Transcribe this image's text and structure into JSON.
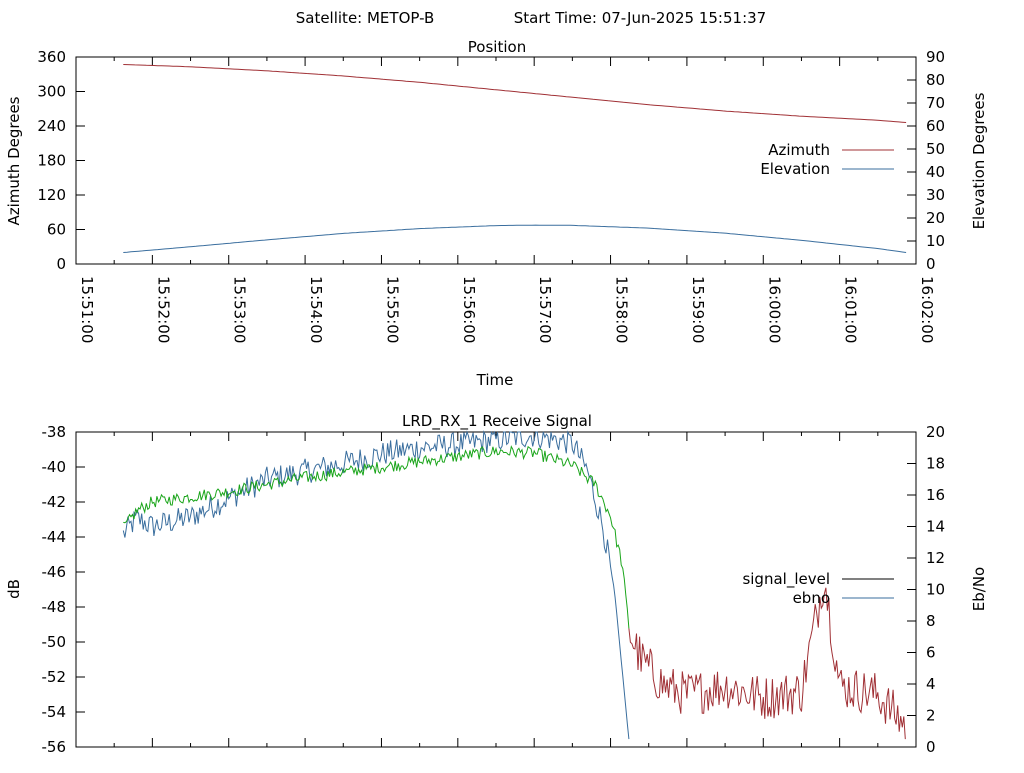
{
  "header": {
    "satellite_label": "Satellite: METOP-B",
    "start_time_label": "Start Time: 07-Jun-2025 15:51:37"
  },
  "chart_data": [
    {
      "type": "line",
      "title": "Position",
      "xlabel": "Time",
      "ylabel": "Azimuth Degrees",
      "y2label": "Elevation Degrees",
      "x_ticks": [
        "15:51:00",
        "15:52:00",
        "15:53:00",
        "15:54:00",
        "15:55:00",
        "15:56:00",
        "15:57:00",
        "15:58:00",
        "15:59:00",
        "16:00:00",
        "16:01:00",
        "16:02:00"
      ],
      "x_range_minutes": [
        0,
        11
      ],
      "ylim": [
        0,
        360
      ],
      "y_ticks": [
        0,
        60,
        120,
        180,
        240,
        300,
        360
      ],
      "y2lim": [
        0,
        90
      ],
      "y2_ticks": [
        0,
        10,
        20,
        30,
        40,
        50,
        60,
        70,
        80,
        90
      ],
      "legend_position": "right",
      "series": [
        {
          "name": "Azimuth",
          "axis": "y",
          "color": "#a03035",
          "x": [
            0.62,
            1.5,
            2.5,
            3.5,
            4.5,
            5.5,
            6.5,
            7.5,
            8.5,
            9.5,
            10.5,
            10.87
          ],
          "values": [
            347,
            343,
            336,
            327,
            316,
            303,
            290,
            277,
            266,
            257,
            250,
            246
          ]
        },
        {
          "name": "Elevation",
          "axis": "y2",
          "color": "#3a6e9e",
          "x": [
            0.62,
            1.5,
            2.5,
            3.5,
            4.5,
            5.5,
            6.0,
            6.5,
            7.5,
            8.5,
            9.5,
            10.5,
            10.87
          ],
          "values": [
            5,
            7.5,
            10.5,
            13.3,
            15.4,
            16.7,
            16.9,
            16.8,
            15.6,
            13.4,
            10.3,
            6.7,
            5
          ]
        }
      ]
    },
    {
      "type": "line",
      "title": "LRD_RX_1 Receive Signal",
      "ylabel": "dB",
      "y2label": "Eb/No",
      "ylim": [
        -56,
        -38
      ],
      "y_ticks": [
        -56,
        -54,
        -52,
        -50,
        -48,
        -46,
        -44,
        -42,
        -40,
        -38
      ],
      "y2lim": [
        0,
        20
      ],
      "y2_ticks": [
        0,
        2,
        4,
        6,
        8,
        10,
        12,
        14,
        16,
        18,
        20
      ],
      "x_range_minutes": [
        0,
        11
      ],
      "legend_position": "right",
      "series": [
        {
          "name": "signal_level",
          "axis": "y",
          "legend_color": "#000000",
          "color": "#1aa51a",
          "tail_color": "#a03035",
          "tail_from_minute": 7.25,
          "x": [
            0.62,
            0.8,
            1.0,
            1.5,
            2.0,
            2.5,
            3.0,
            3.5,
            4.0,
            4.5,
            5.0,
            5.5,
            6.0,
            6.5,
            6.8,
            7.0,
            7.15,
            7.25,
            7.4,
            7.7,
            8.0,
            8.5,
            9.0,
            9.5,
            9.8,
            10.0,
            10.5,
            10.87
          ],
          "values": [
            -43.5,
            -42.5,
            -42.0,
            -41.7,
            -41.4,
            -41.0,
            -40.6,
            -40.3,
            -40.0,
            -39.7,
            -39.4,
            -39.1,
            -39.2,
            -39.9,
            -41.0,
            -42.8,
            -45.5,
            -49.5,
            -51.0,
            -52.5,
            -53.0,
            -52.5,
            -53.2,
            -52.8,
            -46.2,
            -52.5,
            -53.0,
            -54.8
          ],
          "noise": 0.35,
          "tail_noise": 1.3
        },
        {
          "name": "ebno",
          "axis": "y2",
          "color": "#3a6e9e",
          "x": [
            0.62,
            0.8,
            1.0,
            1.5,
            2.0,
            2.5,
            3.0,
            3.5,
            4.0,
            4.5,
            5.0,
            5.5,
            6.0,
            6.5,
            6.7,
            6.9,
            7.05,
            7.15,
            7.25
          ],
          "values": [
            13.5,
            14.5,
            14.0,
            14.6,
            15.8,
            17.0,
            17.5,
            18.0,
            18.6,
            19.0,
            19.2,
            19.5,
            19.8,
            19.3,
            17.5,
            14.0,
            10.0,
            5.0,
            0.0
          ],
          "noise": 0.8
        }
      ]
    }
  ]
}
